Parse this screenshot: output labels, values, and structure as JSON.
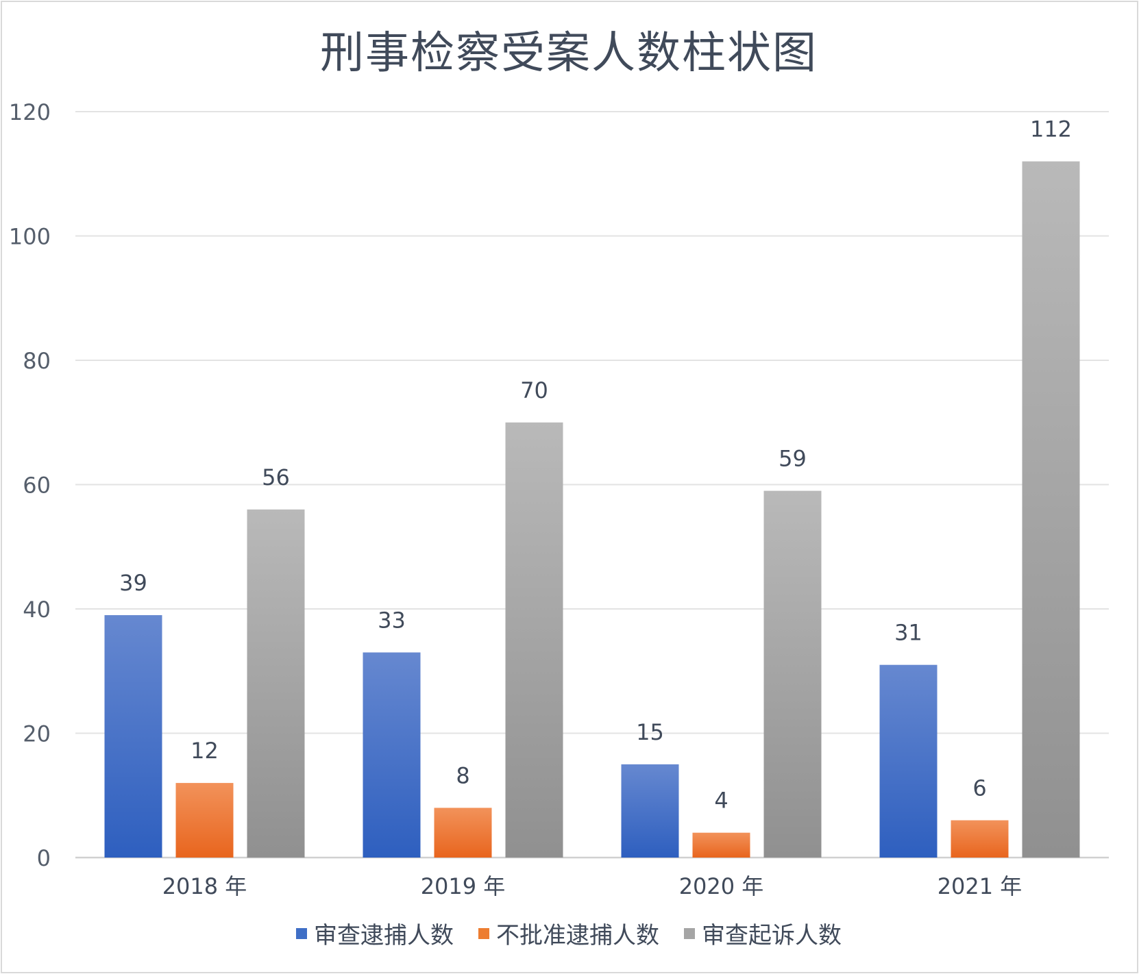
{
  "chart_data": {
    "type": "bar",
    "title": "刑事检察受案人数柱状图",
    "categories": [
      "2018 年",
      "2019 年",
      "2020 年",
      "2021 年"
    ],
    "series": [
      {
        "name": "审查逮捕人数",
        "values": [
          39,
          33,
          15,
          31
        ],
        "color_top": "#6688d0",
        "color_bottom": "#2e5fbf"
      },
      {
        "name": "不批准逮捕人数",
        "values": [
          12,
          8,
          4,
          6
        ],
        "color_top": "#f2925a",
        "color_bottom": "#e8651e"
      },
      {
        "name": "审查起诉人数",
        "values": [
          56,
          70,
          59,
          112
        ],
        "color_top": "#b9b9b9",
        "color_bottom": "#909090"
      }
    ],
    "ylim": [
      0,
      120
    ],
    "yticks": [
      "0",
      "20",
      "40",
      "60",
      "80",
      "100",
      "120"
    ],
    "grid": true,
    "legend": "bottom",
    "show_data_labels": true
  }
}
